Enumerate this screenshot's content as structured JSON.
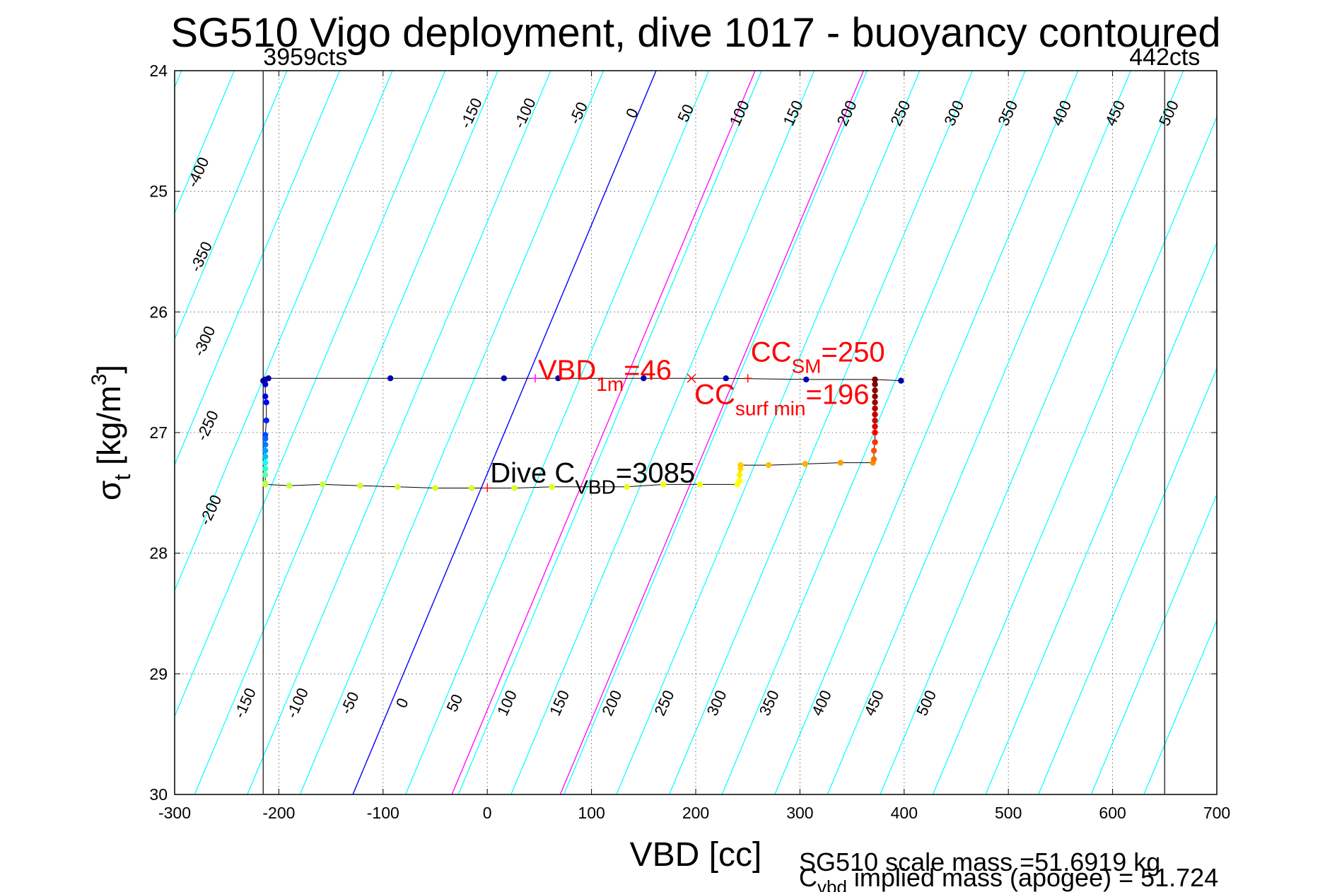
{
  "chart_data": {
    "type": "scatter",
    "title": "SG510 Vigo deployment, dive 1017 - buoyancy contoured",
    "xlabel": "VBD [cc]",
    "ylabel_main": "σ",
    "ylabel_sub": "t",
    "ylabel_rest": " [kg/m",
    "ylabel_sup": "3",
    "ylabel_close": "]",
    "xlim": [
      -300,
      700
    ],
    "ylim": [
      30,
      24
    ],
    "grid": true,
    "x_ticks": [
      "-300",
      "-200",
      "-100",
      "0",
      "100",
      "200",
      "300",
      "400",
      "500",
      "600",
      "700"
    ],
    "y_ticks": [
      "24",
      "25",
      "26",
      "27",
      "28",
      "29",
      "30"
    ],
    "limit_lines": [
      {
        "x": -215,
        "label": "3959cts"
      },
      {
        "x": 650,
        "label": "442cts"
      }
    ],
    "contours": {
      "levels": [
        -400,
        -350,
        -300,
        -250,
        -200,
        -150,
        -100,
        -50,
        0,
        50,
        100,
        150,
        200,
        250,
        300,
        350,
        400,
        450,
        500
      ],
      "reference_vbd_at_sigma24": 162,
      "slope_vbd_per_sigma": -48.5,
      "top_labels": [
        "-150",
        "-100",
        "-50",
        "0",
        "50",
        "100",
        "150",
        "200",
        "250",
        "300",
        "350",
        "400",
        "450",
        "500"
      ],
      "left_labels": [
        "-400",
        "-350",
        "-300",
        "-250",
        "-200"
      ],
      "bottom_labels": [
        "-150",
        "-100",
        "-50",
        "0",
        "50",
        "100",
        "150",
        "200",
        "250",
        "300",
        "350",
        "400",
        "450",
        "500"
      ],
      "color_normal": "#00ffff",
      "color_zero": "#0000ff",
      "color_highlight": "#ff00ff",
      "highlight_vbd_at_sigma24": [
        257,
        361
      ]
    },
    "series": [
      {
        "segment": "upper",
        "x": [
          -215,
          -213,
          -210,
          -93,
          16,
          68,
          150,
          229,
          306,
          372,
          397
        ],
        "y": [
          26.57,
          26.56,
          26.55,
          26.55,
          26.55,
          26.55,
          26.55,
          26.55,
          26.56,
          26.56,
          26.57
        ],
        "colors": [
          "#00008f",
          "#00009f",
          "#0000af",
          "#0000af",
          "#0000af",
          "#0000af",
          "#0000af",
          "#0000af",
          "#0000af",
          "#7f0000",
          "#0000af"
        ]
      },
      {
        "segment": "left-vertical",
        "x": [
          -213,
          -213,
          -212,
          -212,
          -213,
          -213,
          -213,
          -213,
          -213,
          -213,
          -213,
          -213,
          -213
        ],
        "y": [
          26.6,
          26.7,
          26.75,
          26.9,
          27.02,
          27.05,
          27.1,
          27.15,
          27.2,
          27.25,
          27.3,
          27.35,
          27.42
        ],
        "colors": [
          "#0000cf",
          "#0000df",
          "#0000ff",
          "#0020ff",
          "#0040ff",
          "#0060ff",
          "#0080ff",
          "#00a0ff",
          "#00c0ff",
          "#10ffef",
          "#30ffcf",
          "#60ff9f",
          "#a0ff60"
        ]
      },
      {
        "segment": "lower",
        "x": [
          -213,
          -190,
          -158,
          -122,
          -86,
          -50,
          -15,
          26,
          62,
          134,
          169,
          204,
          240
        ],
        "y": [
          27.43,
          27.44,
          27.43,
          27.44,
          27.45,
          27.46,
          27.46,
          27.46,
          27.45,
          27.45,
          27.43,
          27.43,
          27.43
        ],
        "colors": [
          "#c0ff40",
          "#c0ff40",
          "#c8ff38",
          "#d0ff30",
          "#d0ff30",
          "#d8ff28",
          "#d8ff28",
          "#e0ff20",
          "#e0ff20",
          "#e8ff18",
          "#f0ff10",
          "#f0ff10",
          "#ffff00"
        ]
      },
      {
        "segment": "mid-step",
        "x": [
          242,
          242,
          243,
          243,
          270,
          305,
          339,
          370
        ],
        "y": [
          27.4,
          27.35,
          27.3,
          27.27,
          27.27,
          27.26,
          27.25,
          27.25
        ],
        "colors": [
          "#ffff00",
          "#fff000",
          "#ffe000",
          "#ffd000",
          "#ffc000",
          "#ffb000",
          "#ffa000",
          "#ff9000"
        ]
      },
      {
        "segment": "right-vertical",
        "x": [
          371,
          371,
          372,
          372,
          372,
          372,
          372,
          372,
          372,
          372,
          372,
          372,
          372
        ],
        "y": [
          27.22,
          27.15,
          27.08,
          27.0,
          26.95,
          26.9,
          26.85,
          26.8,
          26.75,
          26.7,
          26.65,
          26.6,
          26.56
        ],
        "colors": [
          "#ff7000",
          "#ff5000",
          "#ff3000",
          "#ef0000",
          "#df0000",
          "#cf0000",
          "#bf0000",
          "#af0000",
          "#9f0000",
          "#8f0000",
          "#8f0000",
          "#7f0000",
          "#7f0000"
        ]
      }
    ],
    "markers": [
      {
        "x": 46,
        "y": 26.55,
        "symbol": "+",
        "color": "#ff00ff"
      },
      {
        "x": 196,
        "y": 26.55,
        "symbol": "x",
        "color": "#ff0000"
      },
      {
        "x": 250,
        "y": 26.55,
        "symbol": "+",
        "color": "#ff0000"
      },
      {
        "x": 0,
        "y": 27.46,
        "symbol": "+",
        "color": "#ff0000"
      }
    ],
    "annotations": [
      {
        "main": "VBD",
        "sub": "1m",
        "tail": "=46",
        "color": "#ff0000",
        "x": 46,
        "y": 26.55
      },
      {
        "main": "CC",
        "sub": "SM",
        "tail": "=250",
        "color": "#ff0000",
        "x": 250,
        "y": 26.4
      },
      {
        "main": "CC",
        "sub": "surf min",
        "tail": "=196",
        "color": "#ff0000",
        "x": 196,
        "y": 26.75
      },
      {
        "main": "Dive C",
        "sub": "VBD",
        "tail": "=3085",
        "color": "#000000",
        "x": 0,
        "y": 27.4
      }
    ],
    "footer": {
      "line1": "SG510 scale mass =51.6919 kg",
      "line2_main": "C",
      "line2_sub": "vbd",
      "line2_tail": " implied mass (apogee) = 51.724"
    }
  }
}
